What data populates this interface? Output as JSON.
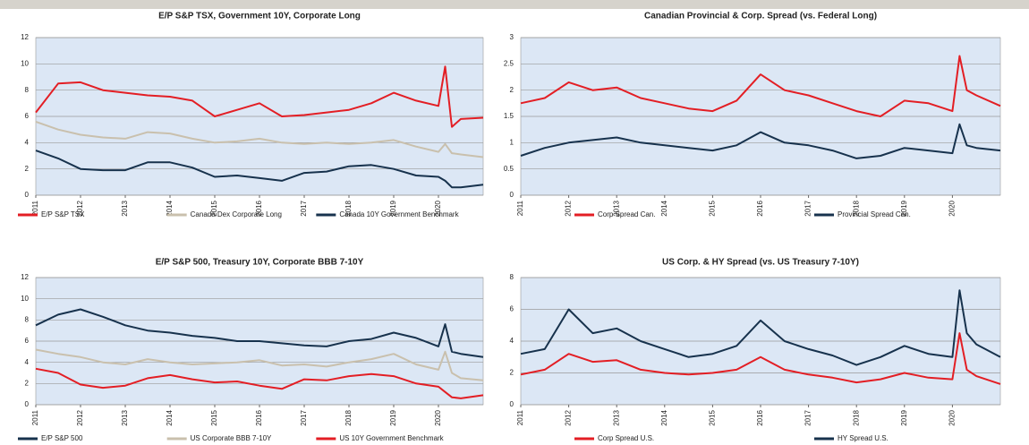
{
  "chart_data": [
    {
      "type": "line",
      "title": "E/P S&P TSX, Government 10Y, Corporate Long",
      "x": [
        2011,
        2011.5,
        2012,
        2012.5,
        2013,
        2013.5,
        2014,
        2014.5,
        2015,
        2015.5,
        2016,
        2016.5,
        2017,
        2017.5,
        2018,
        2018.5,
        2019,
        2019.5,
        2020,
        2020.15,
        2020.3,
        2020.5,
        2021
      ],
      "xlim": [
        2011,
        2021
      ],
      "xticks": [
        2011,
        2012,
        2013,
        2014,
        2015,
        2016,
        2017,
        2018,
        2019,
        2020
      ],
      "ylim": [
        0,
        12
      ],
      "yticks": [
        0,
        2,
        4,
        6,
        8,
        10,
        12
      ],
      "grid": true,
      "series": [
        {
          "name": "E/P S&P TSX",
          "color": "#e31e24",
          "values": [
            6.3,
            8.5,
            8.6,
            8.0,
            7.8,
            7.6,
            7.5,
            7.2,
            6.0,
            6.5,
            7.0,
            6.0,
            6.1,
            6.3,
            6.5,
            7.0,
            7.8,
            7.2,
            6.8,
            9.8,
            5.2,
            5.8,
            5.9
          ]
        },
        {
          "name": "Canada Dex Corporate Long",
          "color": "#c9c0ad",
          "values": [
            5.6,
            5.0,
            4.6,
            4.4,
            4.3,
            4.8,
            4.7,
            4.3,
            4.0,
            4.1,
            4.3,
            4.0,
            3.9,
            4.0,
            3.9,
            4.0,
            4.2,
            3.7,
            3.3,
            3.9,
            3.2,
            3.1,
            2.9
          ]
        },
        {
          "name": "Canada 10Y Government Benchmark",
          "color": "#17324d",
          "values": [
            3.4,
            2.8,
            2.0,
            1.9,
            1.9,
            2.5,
            2.5,
            2.1,
            1.4,
            1.5,
            1.3,
            1.1,
            1.7,
            1.8,
            2.2,
            2.3,
            2.0,
            1.5,
            1.4,
            1.1,
            0.6,
            0.6,
            0.8
          ]
        }
      ]
    },
    {
      "type": "line",
      "title": "Canadian Provincial & Corp. Spread (vs. Federal Long)",
      "x": [
        2011,
        2011.5,
        2012,
        2012.5,
        2013,
        2013.5,
        2014,
        2014.5,
        2015,
        2015.5,
        2016,
        2016.5,
        2017,
        2017.5,
        2018,
        2018.5,
        2019,
        2019.5,
        2020,
        2020.15,
        2020.3,
        2020.5,
        2021
      ],
      "xlim": [
        2011,
        2021
      ],
      "xticks": [
        2011,
        2012,
        2013,
        2014,
        2015,
        2016,
        2017,
        2018,
        2019,
        2020
      ],
      "ylim": [
        0,
        3
      ],
      "yticks": [
        0,
        0.5,
        1,
        1.5,
        2,
        2.5,
        3
      ],
      "grid": true,
      "series": [
        {
          "name": "Corp Spread Can.",
          "color": "#e31e24",
          "values": [
            1.75,
            1.85,
            2.15,
            2.0,
            2.05,
            1.85,
            1.75,
            1.65,
            1.6,
            1.8,
            2.3,
            2.0,
            1.9,
            1.75,
            1.6,
            1.5,
            1.8,
            1.75,
            1.6,
            2.65,
            2.0,
            1.9,
            1.7
          ]
        },
        {
          "name": "Provincial Spread Can.",
          "color": "#17324d",
          "values": [
            0.75,
            0.9,
            1.0,
            1.05,
            1.1,
            1.0,
            0.95,
            0.9,
            0.85,
            0.95,
            1.2,
            1.0,
            0.95,
            0.85,
            0.7,
            0.75,
            0.9,
            0.85,
            0.8,
            1.35,
            0.95,
            0.9,
            0.85
          ]
        }
      ]
    },
    {
      "type": "line",
      "title": "E/P S&P 500, Treasury 10Y, Corporate BBB 7-10Y",
      "x": [
        2011,
        2011.5,
        2012,
        2012.5,
        2013,
        2013.5,
        2014,
        2014.5,
        2015,
        2015.5,
        2016,
        2016.5,
        2017,
        2017.5,
        2018,
        2018.5,
        2019,
        2019.5,
        2020,
        2020.15,
        2020.3,
        2020.5,
        2021
      ],
      "xlim": [
        2011,
        2021
      ],
      "xticks": [
        2011,
        2012,
        2013,
        2014,
        2015,
        2016,
        2017,
        2018,
        2019,
        2020
      ],
      "ylim": [
        0,
        12
      ],
      "yticks": [
        0,
        2,
        4,
        6,
        8,
        10,
        12
      ],
      "grid": true,
      "series": [
        {
          "name": "E/P S&P 500",
          "color": "#17324d",
          "values": [
            7.5,
            8.5,
            9.0,
            8.3,
            7.5,
            7.0,
            6.8,
            6.5,
            6.3,
            6.0,
            6.0,
            5.8,
            5.6,
            5.5,
            6.0,
            6.2,
            6.8,
            6.3,
            5.5,
            7.6,
            5.0,
            4.8,
            4.5
          ]
        },
        {
          "name": "US Corporate BBB 7-10Y",
          "color": "#c9c0ad",
          "values": [
            5.2,
            4.8,
            4.5,
            4.0,
            3.8,
            4.3,
            4.0,
            3.8,
            3.9,
            4.0,
            4.2,
            3.7,
            3.8,
            3.6,
            4.0,
            4.3,
            4.8,
            3.8,
            3.3,
            5.0,
            3.0,
            2.5,
            2.3
          ]
        },
        {
          "name": "US 10Y Government Benchmark",
          "color": "#e31e24",
          "values": [
            3.4,
            3.0,
            1.9,
            1.6,
            1.8,
            2.5,
            2.8,
            2.4,
            2.1,
            2.2,
            1.8,
            1.5,
            2.4,
            2.3,
            2.7,
            2.9,
            2.7,
            2.0,
            1.7,
            1.2,
            0.7,
            0.6,
            0.9
          ]
        }
      ]
    },
    {
      "type": "line",
      "title": "US Corp. & HY Spread (vs. US Treasury 7-10Y)",
      "x": [
        2011,
        2011.5,
        2012,
        2012.5,
        2013,
        2013.5,
        2014,
        2014.5,
        2015,
        2015.5,
        2016,
        2016.5,
        2017,
        2017.5,
        2018,
        2018.5,
        2019,
        2019.5,
        2020,
        2020.15,
        2020.3,
        2020.5,
        2021
      ],
      "xlim": [
        2011,
        2021
      ],
      "xticks": [
        2011,
        2012,
        2013,
        2014,
        2015,
        2016,
        2017,
        2018,
        2019,
        2020
      ],
      "ylim": [
        0,
        8
      ],
      "yticks": [
        0,
        2,
        4,
        6,
        8
      ],
      "grid": true,
      "series": [
        {
          "name": "Corp Spread U.S.",
          "color": "#e31e24",
          "values": [
            1.9,
            2.2,
            3.2,
            2.7,
            2.8,
            2.2,
            2.0,
            1.9,
            2.0,
            2.2,
            3.0,
            2.2,
            1.9,
            1.7,
            1.4,
            1.6,
            2.0,
            1.7,
            1.6,
            4.5,
            2.2,
            1.8,
            1.3
          ]
        },
        {
          "name": "HY Spread U.S.",
          "color": "#17324d",
          "values": [
            3.2,
            3.5,
            6.0,
            4.5,
            4.8,
            4.0,
            3.5,
            3.0,
            3.2,
            3.7,
            5.3,
            4.0,
            3.5,
            3.1,
            2.5,
            3.0,
            3.7,
            3.2,
            3.0,
            7.2,
            4.5,
            3.8,
            3.0
          ]
        }
      ]
    }
  ]
}
